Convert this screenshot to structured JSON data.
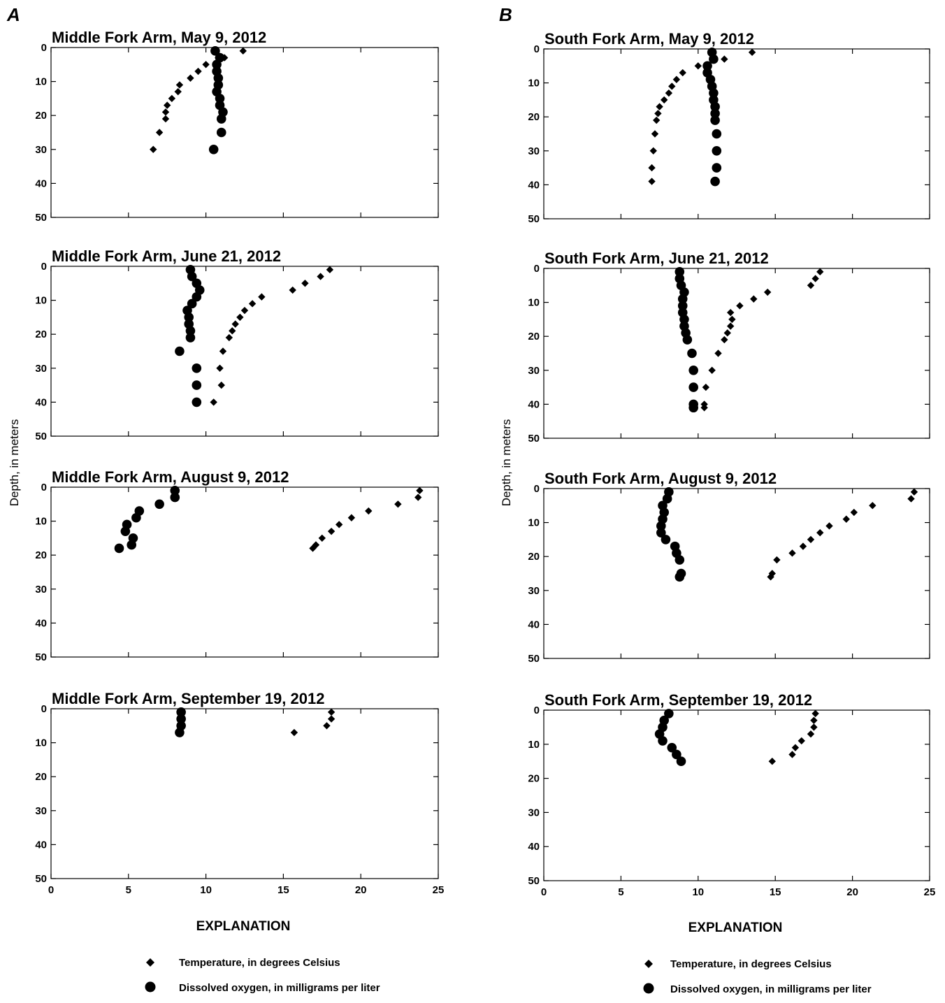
{
  "panels": [
    {
      "letter": "A",
      "ylabel": "Depth, in meters",
      "explanation": "EXPLANATION",
      "legend": [
        {
          "marker": "diamond",
          "label": "Temperature, in degrees Celsius"
        },
        {
          "marker": "circle",
          "label": "Dissolved oxygen, in milligrams per liter"
        }
      ]
    },
    {
      "letter": "B",
      "ylabel": "Depth, in meters",
      "explanation": "EXPLANATION",
      "legend": [
        {
          "marker": "diamond",
          "label": "Temperature, in degrees Celsius"
        },
        {
          "marker": "circle",
          "label": "Dissolved oxygen, in milligrams per liter"
        }
      ]
    }
  ],
  "chart_data": [
    {
      "type": "scatter",
      "panel": "A",
      "title": "Middle Fork Arm, May 9, 2012",
      "xlim": [
        0,
        25
      ],
      "ylim": [
        0,
        50
      ],
      "y_inverted": true,
      "xticks": [
        0,
        5,
        10,
        15,
        20,
        25
      ],
      "yticks": [
        0,
        10,
        20,
        30,
        40,
        50
      ],
      "series": [
        {
          "marker": "diamond",
          "points": [
            [
              12.4,
              1
            ],
            [
              11.2,
              3
            ],
            [
              10.8,
              3
            ],
            [
              10.0,
              5
            ],
            [
              9.5,
              7
            ],
            [
              9.0,
              9
            ],
            [
              8.3,
              11
            ],
            [
              8.2,
              13
            ],
            [
              7.8,
              15
            ],
            [
              7.5,
              17
            ],
            [
              7.4,
              19
            ],
            [
              7.4,
              21
            ],
            [
              7.0,
              25
            ],
            [
              6.6,
              30
            ]
          ]
        },
        {
          "marker": "circle",
          "points": [
            [
              10.6,
              1
            ],
            [
              10.9,
              3
            ],
            [
              10.7,
              5
            ],
            [
              10.7,
              7
            ],
            [
              10.8,
              9
            ],
            [
              10.8,
              11
            ],
            [
              10.7,
              13
            ],
            [
              10.9,
              15
            ],
            [
              10.9,
              17
            ],
            [
              11.1,
              19
            ],
            [
              11.0,
              21
            ],
            [
              11.0,
              25
            ],
            [
              10.5,
              30
            ]
          ]
        }
      ]
    },
    {
      "type": "scatter",
      "panel": "A",
      "title": "Middle Fork Arm, June 21, 2012",
      "xlim": [
        0,
        25
      ],
      "ylim": [
        0,
        50
      ],
      "y_inverted": true,
      "xticks": [
        0,
        5,
        10,
        15,
        20,
        25
      ],
      "yticks": [
        0,
        10,
        20,
        30,
        40,
        50
      ],
      "series": [
        {
          "marker": "diamond",
          "points": [
            [
              18.0,
              1
            ],
            [
              17.4,
              3
            ],
            [
              16.4,
              5
            ],
            [
              15.6,
              7
            ],
            [
              13.6,
              9
            ],
            [
              13.0,
              11
            ],
            [
              12.5,
              13
            ],
            [
              12.2,
              15
            ],
            [
              11.9,
              17
            ],
            [
              11.7,
              19
            ],
            [
              11.5,
              21
            ],
            [
              11.1,
              25
            ],
            [
              10.9,
              30
            ],
            [
              11.0,
              35
            ],
            [
              10.5,
              40
            ]
          ]
        },
        {
          "marker": "circle",
          "points": [
            [
              9.0,
              1
            ],
            [
              9.1,
              3
            ],
            [
              9.4,
              5
            ],
            [
              9.6,
              7
            ],
            [
              9.4,
              9
            ],
            [
              9.1,
              11
            ],
            [
              8.8,
              13
            ],
            [
              8.9,
              15
            ],
            [
              8.9,
              17
            ],
            [
              9.0,
              19
            ],
            [
              9.0,
              21
            ],
            [
              8.3,
              25
            ],
            [
              9.4,
              30
            ],
            [
              9.4,
              35
            ],
            [
              9.4,
              40
            ]
          ]
        }
      ]
    },
    {
      "type": "scatter",
      "panel": "A",
      "title": "Middle Fork Arm, August 9, 2012",
      "xlim": [
        0,
        25
      ],
      "ylim": [
        0,
        50
      ],
      "y_inverted": true,
      "xticks": [
        0,
        5,
        10,
        15,
        20,
        25
      ],
      "yticks": [
        0,
        10,
        20,
        30,
        40,
        50
      ],
      "series": [
        {
          "marker": "diamond",
          "points": [
            [
              23.8,
              1
            ],
            [
              23.7,
              3
            ],
            [
              22.4,
              5
            ],
            [
              20.5,
              7
            ],
            [
              19.4,
              9
            ],
            [
              18.6,
              11
            ],
            [
              18.1,
              13
            ],
            [
              17.5,
              15
            ],
            [
              17.1,
              17
            ],
            [
              16.9,
              18
            ]
          ]
        },
        {
          "marker": "circle",
          "points": [
            [
              8.0,
              1
            ],
            [
              8.0,
              3
            ],
            [
              7.0,
              5
            ],
            [
              5.7,
              7
            ],
            [
              5.5,
              9
            ],
            [
              4.9,
              11
            ],
            [
              4.8,
              13
            ],
            [
              5.3,
              15
            ],
            [
              5.2,
              17
            ],
            [
              4.4,
              18
            ]
          ]
        }
      ]
    },
    {
      "type": "scatter",
      "panel": "A",
      "title": "Middle Fork Arm, September 19, 2012",
      "xlim": [
        0,
        25
      ],
      "ylim": [
        0,
        50
      ],
      "y_inverted": true,
      "xticks": [
        0,
        5,
        10,
        15,
        20,
        25
      ],
      "yticks": [
        0,
        10,
        20,
        30,
        40,
        50
      ],
      "series": [
        {
          "marker": "diamond",
          "points": [
            [
              18.1,
              1
            ],
            [
              18.1,
              3
            ],
            [
              17.8,
              5
            ],
            [
              15.7,
              7
            ]
          ]
        },
        {
          "marker": "circle",
          "points": [
            [
              8.4,
              1
            ],
            [
              8.4,
              3
            ],
            [
              8.4,
              5
            ],
            [
              8.3,
              7
            ]
          ]
        }
      ]
    },
    {
      "type": "scatter",
      "panel": "B",
      "title": "South Fork Arm, May 9, 2012",
      "xlim": [
        0,
        25
      ],
      "ylim": [
        0,
        50
      ],
      "y_inverted": true,
      "xticks": [
        0,
        5,
        10,
        15,
        20,
        25
      ],
      "yticks": [
        0,
        10,
        20,
        30,
        40,
        50
      ],
      "series": [
        {
          "marker": "diamond",
          "points": [
            [
              13.5,
              1
            ],
            [
              11.7,
              3
            ],
            [
              10.0,
              5
            ],
            [
              9.0,
              7
            ],
            [
              8.6,
              9
            ],
            [
              8.3,
              11
            ],
            [
              8.1,
              13
            ],
            [
              7.8,
              15
            ],
            [
              7.5,
              17
            ],
            [
              7.4,
              19
            ],
            [
              7.3,
              21
            ],
            [
              7.2,
              25
            ],
            [
              7.1,
              30
            ],
            [
              7.0,
              35
            ],
            [
              7.0,
              39
            ]
          ]
        },
        {
          "marker": "circle",
          "points": [
            [
              10.9,
              1
            ],
            [
              11.0,
              3
            ],
            [
              10.6,
              5
            ],
            [
              10.6,
              7
            ],
            [
              10.8,
              9
            ],
            [
              10.9,
              11
            ],
            [
              11.0,
              13
            ],
            [
              11.0,
              15
            ],
            [
              11.1,
              17
            ],
            [
              11.1,
              19
            ],
            [
              11.1,
              21
            ],
            [
              11.2,
              25
            ],
            [
              11.2,
              30
            ],
            [
              11.2,
              35
            ],
            [
              11.1,
              39
            ]
          ]
        }
      ]
    },
    {
      "type": "scatter",
      "panel": "B",
      "title": "South Fork Arm, June 21, 2012",
      "xlim": [
        0,
        25
      ],
      "ylim": [
        0,
        50
      ],
      "y_inverted": true,
      "xticks": [
        0,
        5,
        10,
        15,
        20,
        25
      ],
      "yticks": [
        0,
        10,
        20,
        30,
        40,
        50
      ],
      "series": [
        {
          "marker": "diamond",
          "points": [
            [
              17.9,
              1
            ],
            [
              17.6,
              3
            ],
            [
              17.3,
              5
            ],
            [
              14.5,
              7
            ],
            [
              13.6,
              9
            ],
            [
              12.7,
              11
            ],
            [
              12.1,
              13
            ],
            [
              12.2,
              15
            ],
            [
              12.1,
              17
            ],
            [
              11.9,
              19
            ],
            [
              11.7,
              21
            ],
            [
              11.3,
              25
            ],
            [
              10.9,
              30
            ],
            [
              10.5,
              35
            ],
            [
              10.4,
              40
            ],
            [
              10.4,
              41
            ]
          ]
        },
        {
          "marker": "circle",
          "points": [
            [
              8.8,
              1
            ],
            [
              8.8,
              3
            ],
            [
              8.9,
              5
            ],
            [
              9.1,
              7
            ],
            [
              9.0,
              9
            ],
            [
              9.0,
              11
            ],
            [
              9.0,
              13
            ],
            [
              9.1,
              15
            ],
            [
              9.1,
              17
            ],
            [
              9.2,
              19
            ],
            [
              9.3,
              21
            ],
            [
              9.6,
              25
            ],
            [
              9.7,
              30
            ],
            [
              9.7,
              35
            ],
            [
              9.7,
              40
            ],
            [
              9.7,
              41
            ]
          ]
        }
      ]
    },
    {
      "type": "scatter",
      "panel": "B",
      "title": "South Fork Arm, August 9, 2012",
      "xlim": [
        0,
        25
      ],
      "ylim": [
        0,
        50
      ],
      "y_inverted": true,
      "xticks": [
        0,
        5,
        10,
        15,
        20,
        25
      ],
      "yticks": [
        0,
        10,
        20,
        30,
        40,
        50
      ],
      "series": [
        {
          "marker": "diamond",
          "points": [
            [
              24.0,
              1
            ],
            [
              23.8,
              3
            ],
            [
              21.3,
              5
            ],
            [
              20.1,
              7
            ],
            [
              19.6,
              9
            ],
            [
              18.5,
              11
            ],
            [
              17.9,
              13
            ],
            [
              17.3,
              15
            ],
            [
              16.8,
              17
            ],
            [
              16.1,
              19
            ],
            [
              15.1,
              21
            ],
            [
              14.8,
              25
            ],
            [
              14.7,
              26
            ]
          ]
        },
        {
          "marker": "circle",
          "points": [
            [
              8.1,
              1
            ],
            [
              8.0,
              3
            ],
            [
              7.7,
              5
            ],
            [
              7.8,
              7
            ],
            [
              7.7,
              9
            ],
            [
              7.6,
              11
            ],
            [
              7.6,
              13
            ],
            [
              7.9,
              15
            ],
            [
              8.5,
              17
            ],
            [
              8.6,
              19
            ],
            [
              8.8,
              21
            ],
            [
              8.9,
              25
            ],
            [
              8.8,
              26
            ]
          ]
        }
      ]
    },
    {
      "type": "scatter",
      "panel": "B",
      "title": "South Fork Arm, September 19, 2012",
      "xlim": [
        0,
        25
      ],
      "ylim": [
        0,
        50
      ],
      "y_inverted": true,
      "xticks": [
        0,
        5,
        10,
        15,
        20,
        25
      ],
      "yticks": [
        0,
        10,
        20,
        30,
        40,
        50
      ],
      "series": [
        {
          "marker": "diamond",
          "points": [
            [
              17.6,
              1
            ],
            [
              17.5,
              3
            ],
            [
              17.5,
              5
            ],
            [
              17.3,
              7
            ],
            [
              16.7,
              9
            ],
            [
              16.3,
              11
            ],
            [
              16.1,
              13
            ],
            [
              14.8,
              15
            ]
          ]
        },
        {
          "marker": "circle",
          "points": [
            [
              8.1,
              1
            ],
            [
              7.8,
              3
            ],
            [
              7.7,
              5
            ],
            [
              7.5,
              7
            ],
            [
              7.7,
              9
            ],
            [
              8.3,
              11
            ],
            [
              8.6,
              13
            ],
            [
              8.9,
              15
            ]
          ]
        }
      ]
    }
  ]
}
